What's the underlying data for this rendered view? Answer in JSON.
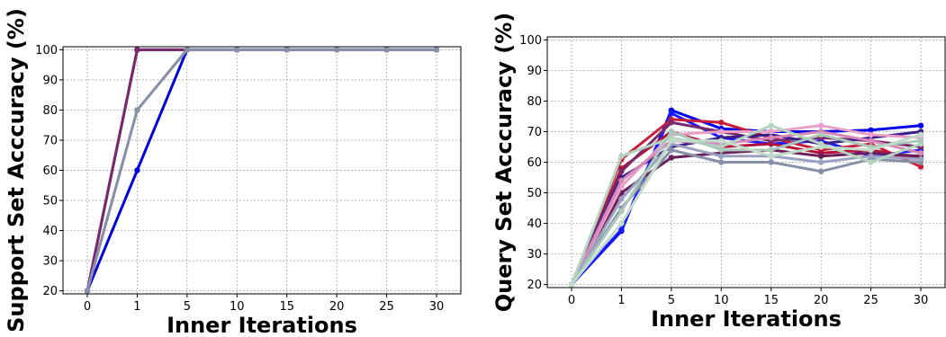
{
  "chart_data": [
    {
      "type": "line",
      "categories": [
        "0",
        "1",
        "5",
        "10",
        "15",
        "20",
        "25",
        "30"
      ],
      "xlabel": "Inner Iterations",
      "ylabel": "Support Set Acccuracy (%)",
      "yticks": [
        20,
        30,
        40,
        50,
        60,
        70,
        80,
        90,
        100
      ],
      "ylim": [
        19,
        101
      ],
      "grid": true,
      "series": [
        {
          "color": "#0000dd",
          "values": [
            20,
            60,
            100,
            100,
            100,
            100,
            100,
            100
          ]
        },
        {
          "color": "#3a1c8a",
          "values": [
            20,
            100,
            100,
            100,
            100,
            100,
            100,
            100
          ]
        },
        {
          "color": "#7a2a6a",
          "values": [
            20,
            100,
            100,
            100,
            100,
            100,
            100,
            100
          ]
        },
        {
          "color": "#9aa0c0",
          "values": [
            20,
            80,
            100,
            100,
            100,
            100,
            100,
            100
          ]
        },
        {
          "color": "#8890a8",
          "values": [
            20,
            80,
            100,
            100,
            100,
            100,
            100,
            100
          ]
        }
      ]
    },
    {
      "type": "line",
      "categories": [
        "0",
        "1",
        "5",
        "10",
        "15",
        "20",
        "25",
        "30"
      ],
      "xlabel": "Inner Iterations",
      "ylabel": "Query Set Acccuracy (%)",
      "yticks": [
        20,
        30,
        40,
        50,
        60,
        70,
        80,
        90,
        100
      ],
      "ylim": [
        19,
        101
      ],
      "grid": true,
      "series": [
        {
          "color": "#0000ee",
          "values": [
            20,
            37.5,
            77,
            71,
            70,
            70,
            70.5,
            72
          ]
        },
        {
          "color": "#1a1aff",
          "values": [
            20,
            38,
            76,
            68,
            66,
            67,
            62,
            64
          ]
        },
        {
          "color": "#c81e3c",
          "values": [
            20,
            61,
            74,
            73,
            68,
            64,
            66,
            58.5
          ]
        },
        {
          "color": "#b4103a",
          "values": [
            20,
            58,
            70,
            65,
            66,
            63,
            64,
            61
          ]
        },
        {
          "color": "#6a1e5a",
          "values": [
            20,
            50,
            61.5,
            63,
            64,
            62,
            63,
            62
          ]
        },
        {
          "color": "#7a2a6a",
          "values": [
            20,
            57,
            73,
            70,
            67,
            68,
            67,
            65
          ]
        },
        {
          "color": "#3a1c8a",
          "values": [
            20,
            55,
            65,
            68,
            69,
            66,
            68,
            70
          ]
        },
        {
          "color": "#e8a0c8",
          "values": [
            20,
            52,
            69,
            70,
            70,
            72,
            69,
            68
          ]
        },
        {
          "color": "#d888b8",
          "values": [
            20,
            54,
            67,
            66,
            68,
            70,
            67,
            63
          ]
        },
        {
          "color": "#8890a8",
          "values": [
            20,
            45,
            64,
            60,
            60,
            57,
            61,
            60
          ]
        },
        {
          "color": "#9aa0c0",
          "values": [
            20,
            48,
            66,
            62,
            62,
            60,
            62,
            61
          ]
        },
        {
          "color": "#b4d4c0",
          "values": [
            20,
            62,
            68,
            65,
            72,
            66,
            60,
            66
          ]
        },
        {
          "color": "#a8c8b8",
          "values": [
            20,
            44,
            70,
            64,
            64,
            69,
            65,
            67
          ]
        },
        {
          "color": "#c0dcc8",
          "values": [
            20,
            40,
            67,
            67,
            62,
            65,
            64,
            69
          ]
        }
      ]
    }
  ]
}
